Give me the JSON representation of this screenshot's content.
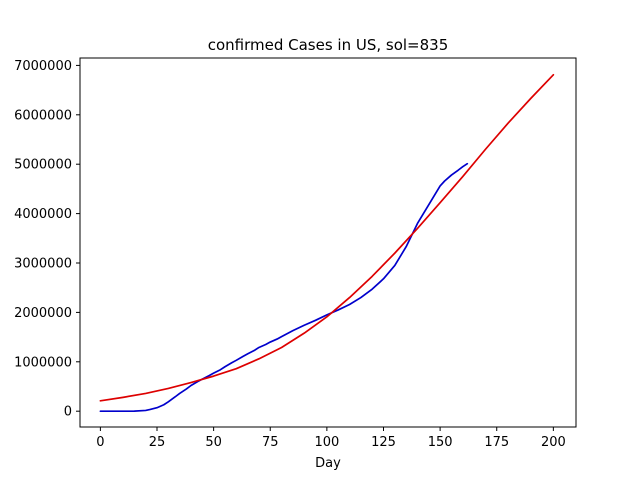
{
  "chart_data": {
    "type": "line",
    "title": "confirmed Cases in US, sol=835",
    "xlabel": "Day",
    "ylabel": "",
    "xlim": [
      -9,
      210
    ],
    "ylim": [
      -320000,
      7150000
    ],
    "xticks": [
      0,
      25,
      50,
      75,
      100,
      125,
      150,
      175,
      200
    ],
    "yticks": [
      0,
      1000000,
      2000000,
      3000000,
      4000000,
      5000000,
      6000000,
      7000000
    ],
    "grid": false,
    "legend": "none",
    "series": [
      {
        "color": "#0000cc",
        "x": [
          0,
          5,
          10,
          15,
          20,
          22,
          25,
          28,
          30,
          33,
          35,
          38,
          40,
          43,
          45,
          48,
          50,
          53,
          55,
          58,
          60,
          63,
          65,
          68,
          70,
          73,
          75,
          78,
          80,
          85,
          90,
          95,
          100,
          105,
          110,
          115,
          120,
          125,
          130,
          135,
          140,
          145,
          150,
          152,
          155,
          158,
          160,
          162
        ],
        "y": [
          0,
          0,
          0,
          1000,
          15000,
          35000,
          70000,
          130000,
          190000,
          290000,
          360000,
          450000,
          520000,
          600000,
          650000,
          720000,
          770000,
          840000,
          900000,
          980000,
          1030000,
          1110000,
          1160000,
          1230000,
          1290000,
          1350000,
          1400000,
          1460000,
          1510000,
          1630000,
          1740000,
          1840000,
          1950000,
          2050000,
          2160000,
          2300000,
          2470000,
          2680000,
          2950000,
          3330000,
          3800000,
          4180000,
          4560000,
          4660000,
          4780000,
          4880000,
          4950000,
          5010000
        ]
      },
      {
        "color": "#dd0000",
        "x": [
          0,
          10,
          20,
          30,
          40,
          50,
          60,
          70,
          80,
          90,
          100,
          110,
          120,
          130,
          140,
          150,
          160,
          170,
          180,
          190,
          200
        ],
        "y": [
          210000,
          280000,
          360000,
          460000,
          580000,
          710000,
          860000,
          1060000,
          1290000,
          1580000,
          1910000,
          2300000,
          2730000,
          3200000,
          3700000,
          4220000,
          4750000,
          5300000,
          5830000,
          6330000,
          6810000
        ]
      }
    ]
  }
}
